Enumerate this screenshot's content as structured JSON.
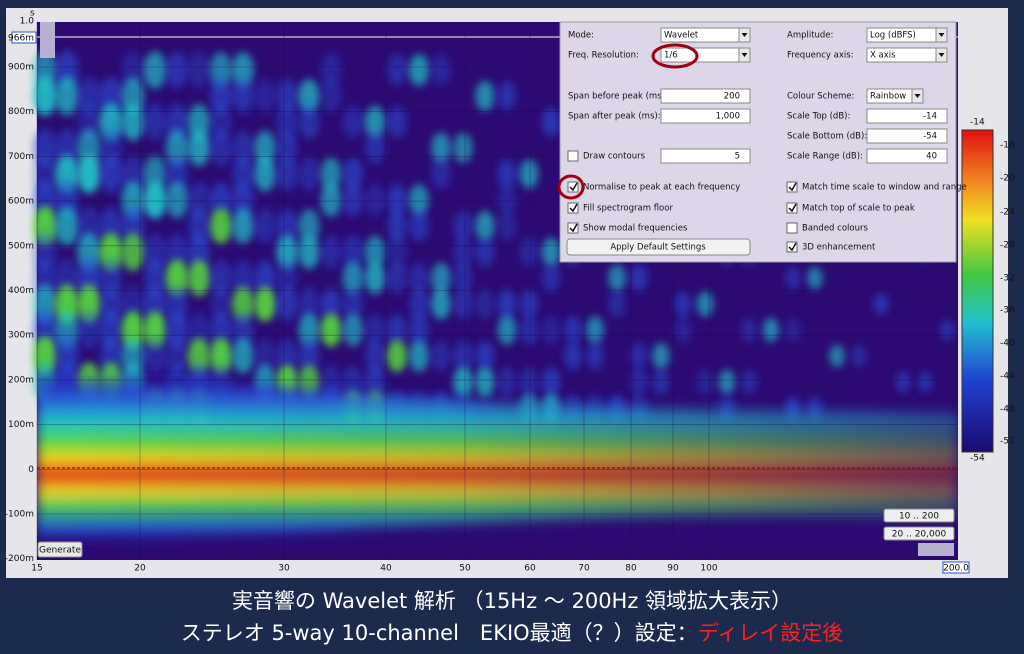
{
  "plot": {
    "y_unit": "s",
    "y_labels": [
      "1.0",
      "966m",
      "900m",
      "800m",
      "700m",
      "600m",
      "500m",
      "400m",
      "300m",
      "200m",
      "100m",
      "0",
      "-100m",
      "-200m"
    ],
    "x_labels": [
      "15",
      "20",
      "30",
      "40",
      "50",
      "60",
      "70",
      "80",
      "90",
      "100"
    ],
    "x_end": "200.0",
    "colorbar_labels": [
      "-14",
      "-16",
      "-20",
      "-24",
      "-28",
      "-32",
      "-36",
      "-40",
      "-44",
      "-48",
      "-52",
      "-54"
    ],
    "buttons": {
      "generate": "Generate",
      "range_low": "10 .. 200",
      "range_full": "20 .. 20,000"
    }
  },
  "settings": {
    "left": [
      {
        "label": "Mode:",
        "value": "Wavelet",
        "control": "dropdown"
      },
      {
        "label": "Freq. Resolution:",
        "value": "1/6",
        "control": "dropdown"
      },
      {
        "label": "Span before peak (ms):",
        "value": "200",
        "control": "input"
      },
      {
        "label": "Span after peak (ms):",
        "value": "1,000",
        "control": "input"
      },
      {
        "label": "Draw contours",
        "checked": false,
        "value": "5",
        "control": "checkbox-input"
      },
      {
        "label": "Normalise to peak at each frequency",
        "checked": true,
        "control": "checkbox"
      },
      {
        "label": "Fill spectrogram floor",
        "checked": true,
        "control": "checkbox"
      },
      {
        "label": "Show modal frequencies",
        "checked": true,
        "control": "checkbox"
      },
      {
        "label": "Apply Default Settings",
        "control": "button"
      }
    ],
    "right": [
      {
        "label": "Amplitude:",
        "value": "Log (dBFS)",
        "control": "dropdown"
      },
      {
        "label": "Frequency axis:",
        "value": "X axis",
        "control": "dropdown"
      },
      {
        "label": "Colour Scheme:",
        "value": "Rainbow",
        "control": "dropdown"
      },
      {
        "label": "Scale Top (dB):",
        "value": "-14",
        "control": "input"
      },
      {
        "label": "Scale Bottom (dB):",
        "value": "-54",
        "control": "input"
      },
      {
        "label": "Scale Range (dB):",
        "value": "40",
        "control": "input"
      },
      {
        "label": "Match time scale to window and range",
        "checked": true,
        "control": "checkbox"
      },
      {
        "label": "Match top of scale to peak",
        "checked": true,
        "control": "checkbox"
      },
      {
        "label": "Banded colours",
        "checked": false,
        "control": "checkbox"
      },
      {
        "label": "3D enhancement",
        "checked": true,
        "control": "checkbox"
      }
    ]
  },
  "caption": {
    "line1": "実音響の Wavelet 解析 （15Hz ～ 200Hz 領域拡大表示）",
    "line2": "ステレオ 5-way 10-channel　EKIO最適（？）設定：",
    "line2_highlight": "ディレイ設定後"
  }
}
